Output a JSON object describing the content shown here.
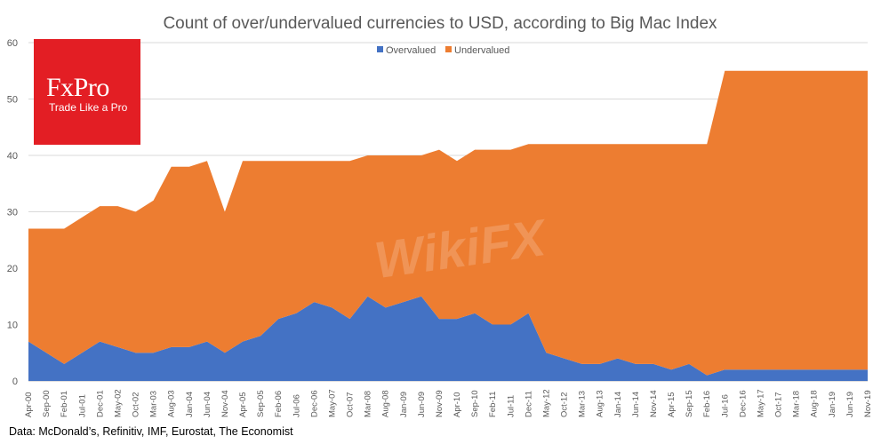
{
  "chart_data": {
    "type": "area",
    "stacked": true,
    "title": "Count of over/undervalued currencies to USD, according to Big Mac Index",
    "categories": [
      "Apr-00",
      "Sep-00",
      "Feb-01",
      "Jul-01",
      "Dec-01",
      "May-02",
      "Oct-02",
      "Mar-03",
      "Aug-03",
      "Jan-04",
      "Jun-04",
      "Nov-04",
      "Apr-05",
      "Sep-05",
      "Feb-06",
      "Jul-06",
      "Dec-06",
      "May-07",
      "Oct-07",
      "Mar-08",
      "Aug-08",
      "Jan-09",
      "Jun-09",
      "Nov-09",
      "Apr-10",
      "Sep-10",
      "Feb-11",
      "Jul-11",
      "Dec-11",
      "May-12",
      "Oct-12",
      "Mar-13",
      "Aug-13",
      "Jan-14",
      "Jun-14",
      "Nov-14",
      "Apr-15",
      "Sep-15",
      "Feb-16",
      "Jul-16",
      "Dec-16",
      "May-17",
      "Oct-17",
      "Mar-18",
      "Aug-18",
      "Jan-19",
      "Jun-19",
      "Nov-19"
    ],
    "series": [
      {
        "name": "Overvalued",
        "color": "#4472c4",
        "values": [
          7,
          5,
          3,
          5,
          7,
          6,
          5,
          5,
          6,
          6,
          7,
          5,
          7,
          8,
          11,
          12,
          14,
          13,
          11,
          15,
          13,
          14,
          15,
          11,
          11,
          12,
          10,
          10,
          12,
          5,
          4,
          3,
          3,
          4,
          3,
          3,
          2,
          3,
          1,
          2,
          2,
          2,
          2,
          2,
          2,
          2,
          2,
          2
        ]
      },
      {
        "name": "Undervalued",
        "color": "#ed7d31",
        "values": [
          20,
          22,
          24,
          24,
          24,
          25,
          25,
          27,
          32,
          32,
          32,
          25,
          32,
          31,
          28,
          27,
          25,
          26,
          28,
          25,
          27,
          26,
          25,
          30,
          28,
          29,
          31,
          31,
          30,
          37,
          38,
          39,
          39,
          38,
          39,
          39,
          40,
          39,
          41,
          53,
          53,
          53,
          53,
          53,
          53,
          53,
          53,
          53
        ]
      }
    ],
    "ylim": [
      0,
      60
    ],
    "yticks": [
      0,
      10,
      20,
      30,
      40,
      50,
      60
    ],
    "grid": true,
    "legend": "top-center",
    "source": "Data: McDonald’s, Refinitiv, IMF, Eurostat, The Economist"
  },
  "logo": {
    "brand": "FxPro",
    "tagline": "Trade Like a Pro"
  },
  "watermark": "WikiFX"
}
